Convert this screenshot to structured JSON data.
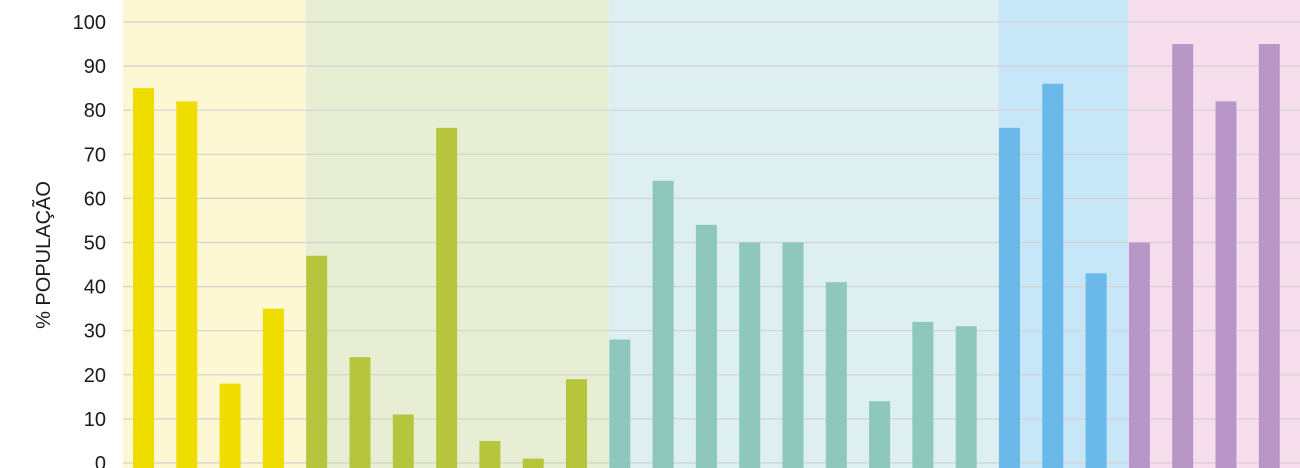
{
  "chart_data": {
    "type": "bar",
    "title": "",
    "xlabel": "",
    "ylabel": "% POPULAÇÃO",
    "ylim": [
      0,
      100
    ],
    "yticks": [
      0,
      10,
      20,
      30,
      40,
      50,
      60,
      70,
      80,
      90,
      100
    ],
    "grid": true,
    "values": [
      85,
      82,
      18,
      35,
      47,
      24,
      11,
      76,
      5,
      1,
      19,
      28,
      64,
      54,
      50,
      50,
      41,
      14,
      32,
      31,
      76,
      86,
      43,
      50,
      95,
      82,
      95
    ],
    "bar_groups": [
      0,
      0,
      0,
      0,
      1,
      1,
      1,
      1,
      1,
      1,
      1,
      2,
      2,
      2,
      2,
      2,
      2,
      2,
      2,
      2,
      3,
      3,
      3,
      4,
      4,
      4,
      4
    ],
    "groups": [
      {
        "bar_color": "#f0dd00",
        "band_color": "#fdf7d4"
      },
      {
        "bar_color": "#b6c63c",
        "band_color": "#e8eed3"
      },
      {
        "bar_color": "#8ec7bb",
        "band_color": "#ddeff0"
      },
      {
        "bar_color": "#6ab9e8",
        "band_color": "#c7e7f8"
      },
      {
        "bar_color": "#b896c8",
        "band_color": "#f7deec"
      }
    ]
  }
}
